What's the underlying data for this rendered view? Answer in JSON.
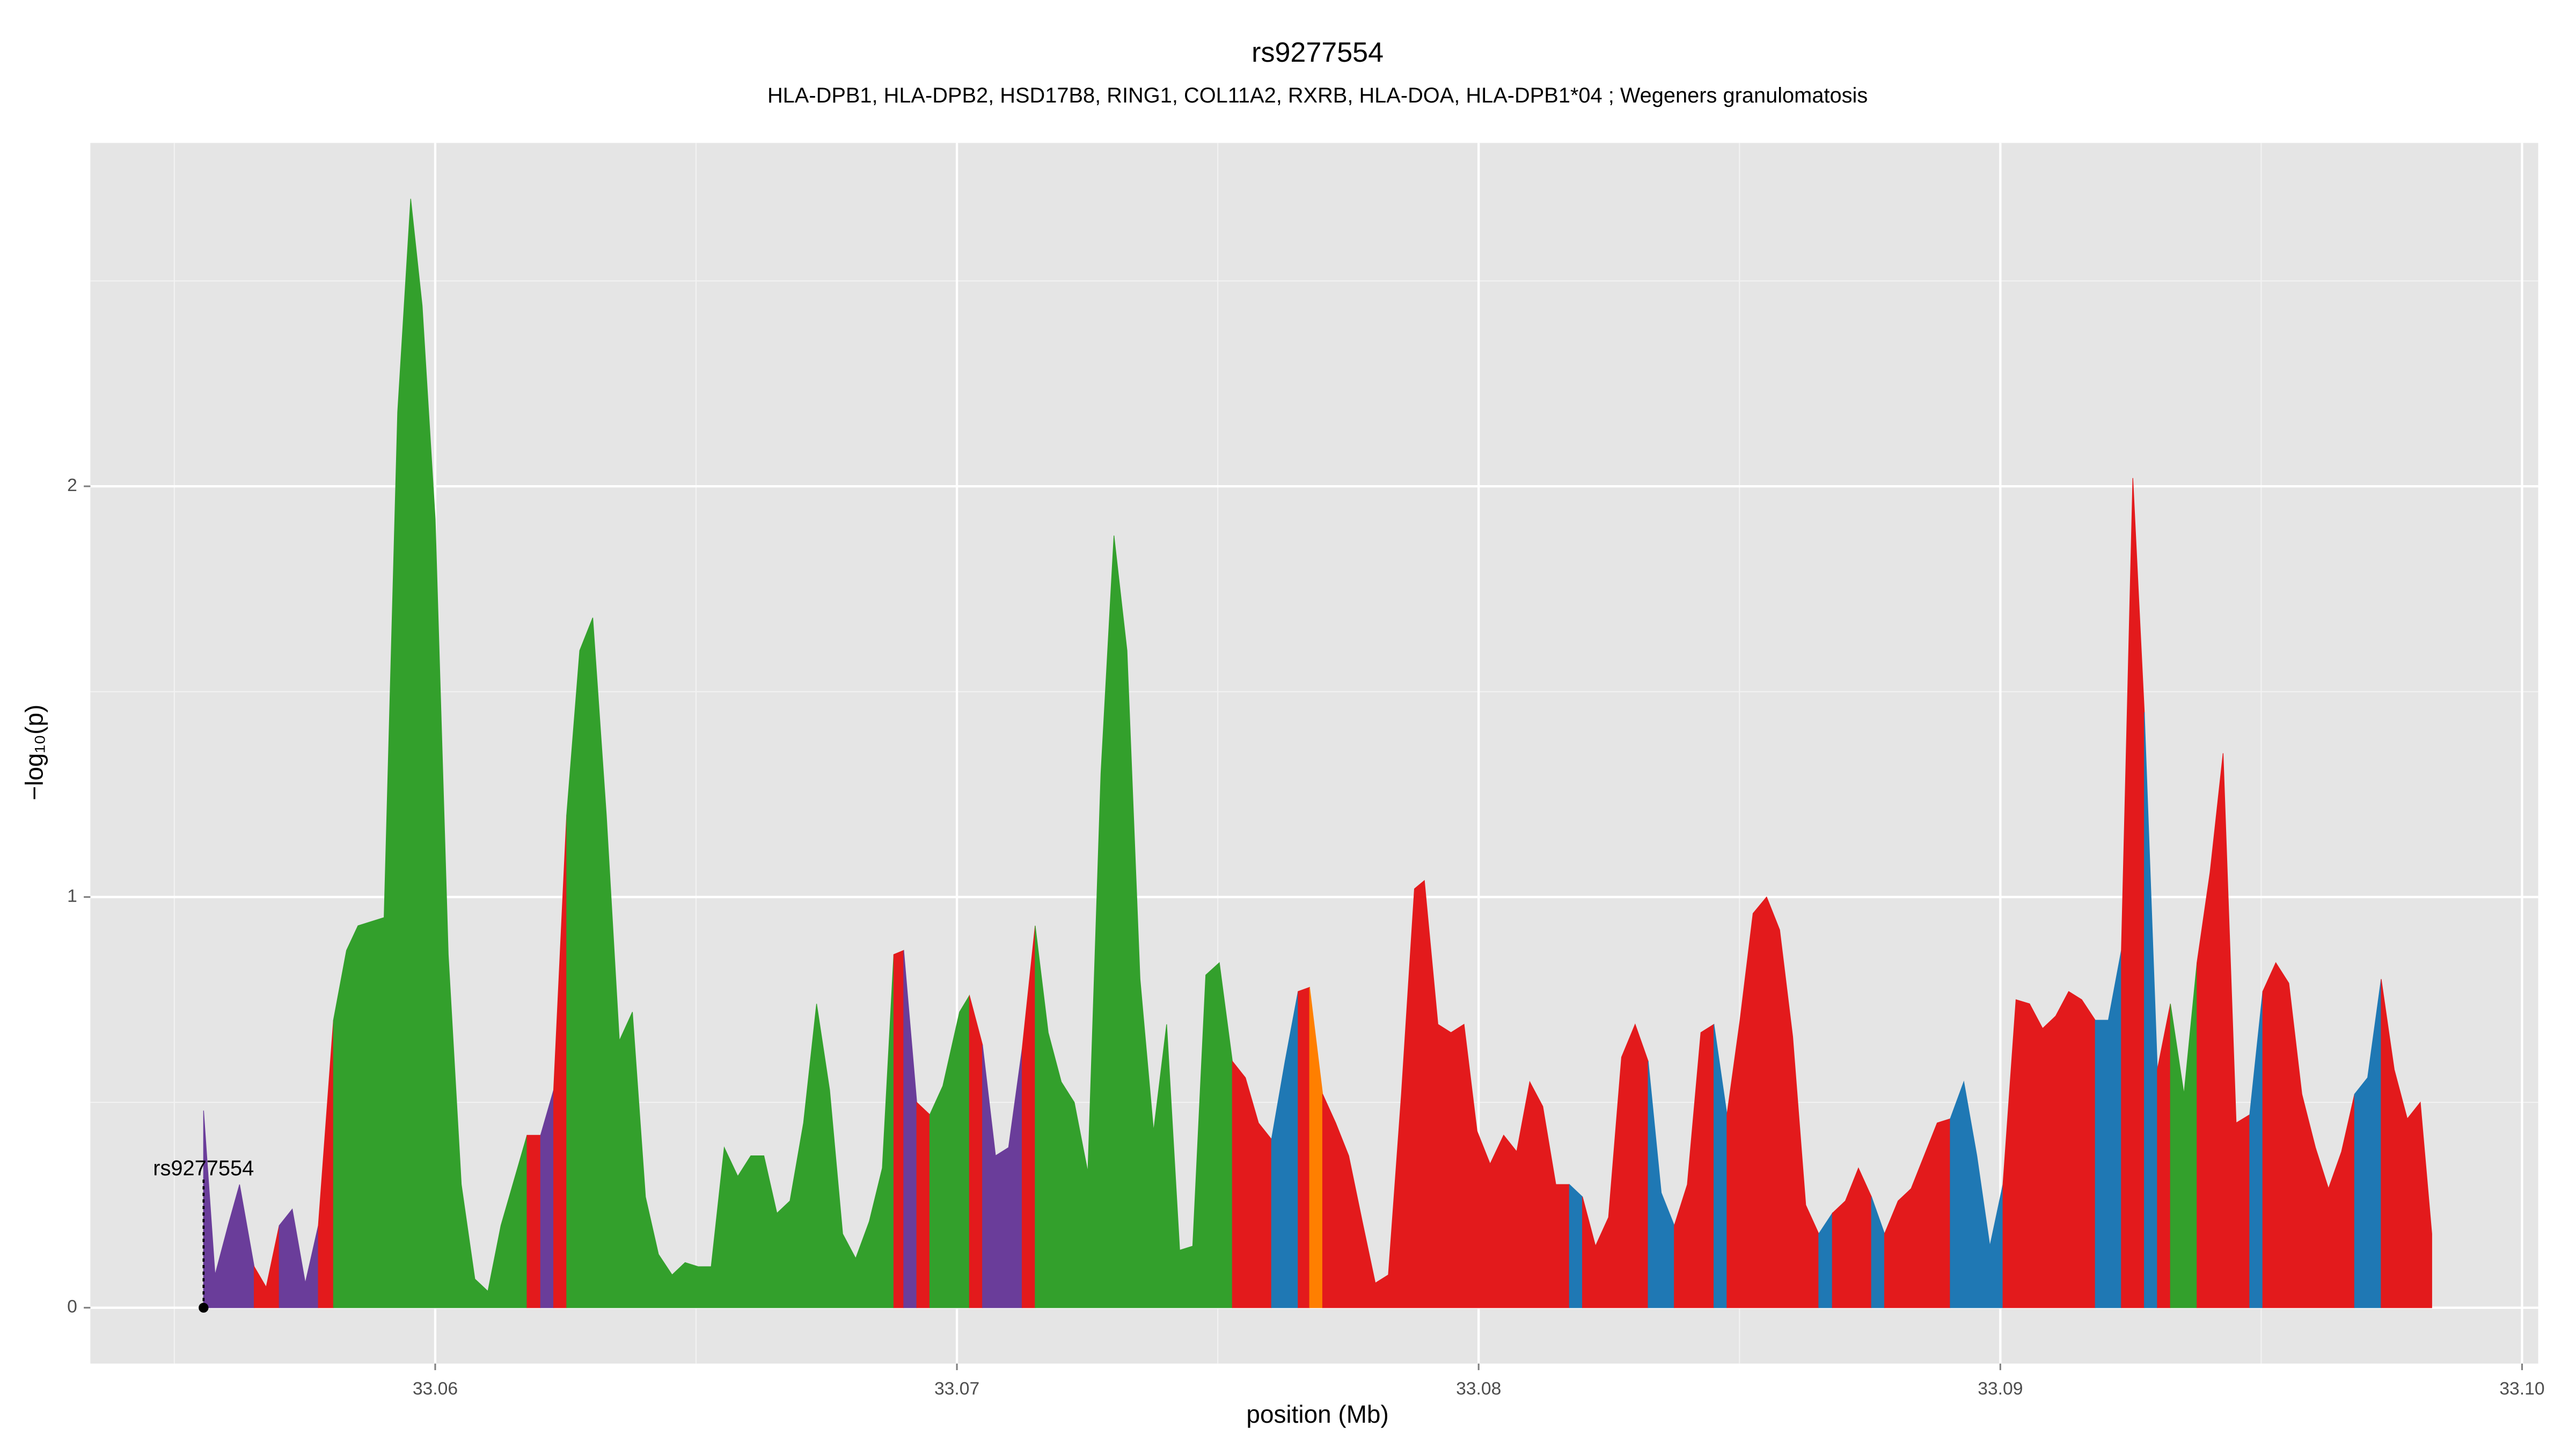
{
  "chart_data": {
    "type": "area",
    "title": "rs9277554",
    "subtitle": "HLA-DPB1, HLA-DPB2, HSD17B8, RING1, COL11A2, RXRB, HLA-DOA, HLA-DPB1*04 ; Wegeners granulomatosis",
    "x_label": "position (Mb)",
    "y_label": "−log₁₀(p)",
    "xlim": [
      33.05339,
      33.10031
    ],
    "ylim": [
      -0.136,
      2.836
    ],
    "xticks": [
      33.06,
      33.07,
      33.08,
      33.09,
      {
        "value": 33.1,
        "label": "33.10"
      }
    ],
    "yticks": [
      0,
      1,
      2
    ],
    "grid": true,
    "annotations": [
      {
        "label": "rs9277554",
        "x": 33.05556,
        "y": 0
      }
    ],
    "segments": [
      {
        "color": "#6a3d9a",
        "x": [
          33.05556,
          33.05578,
          33.05603,
          33.05625,
          33.05653
        ],
        "values": [
          0.48,
          0.08,
          0.2,
          0.3,
          0.1
        ]
      },
      {
        "color": "#e31a1c",
        "x": [
          33.05653,
          33.05676,
          33.05701
        ],
        "values": [
          0.1,
          0.05,
          0.2
        ]
      },
      {
        "color": "#6a3d9a",
        "x": [
          33.05701,
          33.05726,
          33.05751,
          33.05776
        ],
        "values": [
          0.2,
          0.24,
          0.06,
          0.2
        ]
      },
      {
        "color": "#e31a1c",
        "x": [
          33.05776,
          33.05805
        ],
        "values": [
          0.2,
          0.7
        ]
      },
      {
        "color": "#33a02c",
        "x": [
          33.05805,
          33.0583,
          33.05852,
          33.05877,
          33.05902,
          33.05928,
          33.05953,
          33.05975,
          33.06,
          33.06025,
          33.0605,
          33.06076,
          33.06101,
          33.06126,
          33.06151,
          33.06176
        ],
        "values": [
          0.7,
          0.87,
          0.93,
          0.94,
          0.95,
          2.18,
          2.7,
          2.44,
          1.92,
          0.86,
          0.3,
          0.07,
          0.04,
          0.2,
          0.31,
          0.42
        ]
      },
      {
        "color": "#e31a1c",
        "x": [
          33.06176,
          33.06202
        ],
        "values": [
          0.42,
          0.42
        ]
      },
      {
        "color": "#6a3d9a",
        "x": [
          33.06202,
          33.06227
        ],
        "values": [
          0.42,
          0.53
        ]
      },
      {
        "color": "#e31a1c",
        "x": [
          33.06227,
          33.06252
        ],
        "values": [
          0.53,
          1.2
        ]
      },
      {
        "color": "#33a02c",
        "x": [
          33.06252,
          33.06277,
          33.06302,
          33.06328,
          33.06353,
          33.06378,
          33.06403,
          33.06428,
          33.06454,
          33.06479,
          33.06504,
          33.06529,
          33.06554,
          33.0658,
          33.06605,
          33.0663,
          33.06655,
          33.0668,
          33.06706,
          33.06731,
          33.06756,
          33.06781,
          33.06806,
          33.06832,
          33.06857,
          33.06879
        ],
        "values": [
          1.2,
          1.6,
          1.68,
          1.2,
          0.65,
          0.72,
          0.27,
          0.13,
          0.08,
          0.11,
          0.1,
          0.1,
          0.39,
          0.32,
          0.37,
          0.37,
          0.23,
          0.26,
          0.45,
          0.74,
          0.53,
          0.18,
          0.12,
          0.21,
          0.34,
          0.86
        ]
      },
      {
        "color": "#e31a1c",
        "x": [
          33.06879,
          33.06898
        ],
        "values": [
          0.86,
          0.87
        ]
      },
      {
        "color": "#6a3d9a",
        "x": [
          33.06898,
          33.06923
        ],
        "values": [
          0.87,
          0.5
        ]
      },
      {
        "color": "#e31a1c",
        "x": [
          33.06923,
          33.06948
        ],
        "values": [
          0.5,
          0.47
        ]
      },
      {
        "color": "#33a02c",
        "x": [
          33.06948,
          33.06973,
          33.07005,
          33.07024
        ],
        "values": [
          0.47,
          0.54,
          0.72,
          0.76
        ]
      },
      {
        "color": "#e31a1c",
        "x": [
          33.07024,
          33.07049
        ],
        "values": [
          0.76,
          0.64
        ]
      },
      {
        "color": "#6a3d9a",
        "x": [
          33.07049,
          33.07074,
          33.07099,
          33.07125
        ],
        "values": [
          0.64,
          0.37,
          0.39,
          0.63
        ]
      },
      {
        "color": "#e31a1c",
        "x": [
          33.07125,
          33.0715
        ],
        "values": [
          0.63,
          0.93
        ]
      },
      {
        "color": "#33a02c",
        "x": [
          33.0715,
          33.07175,
          33.072,
          33.07225,
          33.07251,
          33.07276,
          33.07301,
          33.07326,
          33.07351,
          33.07377,
          33.07402,
          33.07427,
          33.07452,
          33.07477,
          33.07503,
          33.07528
        ],
        "values": [
          0.93,
          0.67,
          0.55,
          0.5,
          0.33,
          1.3,
          1.88,
          1.6,
          0.8,
          0.43,
          0.69,
          0.14,
          0.15,
          0.81,
          0.84,
          0.6
        ]
      },
      {
        "color": "#e31a1c",
        "x": [
          33.07528,
          33.07553,
          33.07578,
          33.07603
        ],
        "values": [
          0.6,
          0.56,
          0.45,
          0.41
        ]
      },
      {
        "color": "#1f78b4",
        "x": [
          33.07603,
          33.07629,
          33.07654
        ],
        "values": [
          0.41,
          0.6,
          0.77
        ]
      },
      {
        "color": "#e31a1c",
        "x": [
          33.07654,
          33.07676
        ],
        "values": [
          0.77,
          0.78
        ]
      },
      {
        "color": "#ff7f00",
        "x": [
          33.07676,
          33.07701
        ],
        "values": [
          0.78,
          0.52
        ]
      },
      {
        "color": "#e31a1c",
        "x": [
          33.07701,
          33.07726,
          33.07751,
          33.07777,
          33.07802,
          33.07827,
          33.07852,
          33.07877,
          33.07896,
          33.07922,
          33.07947,
          33.07972,
          33.07997,
          33.08022,
          33.08048,
          33.08073,
          33.08098,
          33.08123,
          33.08148,
          33.08174
        ],
        "values": [
          0.52,
          0.45,
          0.37,
          0.21,
          0.06,
          0.08,
          0.52,
          1.02,
          1.04,
          0.69,
          0.67,
          0.69,
          0.43,
          0.35,
          0.42,
          0.38,
          0.55,
          0.49,
          0.3,
          0.3
        ]
      },
      {
        "color": "#1f78b4",
        "x": [
          33.08174,
          33.08199
        ],
        "values": [
          0.3,
          0.27
        ]
      },
      {
        "color": "#e31a1c",
        "x": [
          33.08199,
          33.08224,
          33.08249,
          33.08274,
          33.083,
          33.08325
        ],
        "values": [
          0.27,
          0.15,
          0.22,
          0.61,
          0.69,
          0.6
        ]
      },
      {
        "color": "#1f78b4",
        "x": [
          33.08325,
          33.0835,
          33.08375
        ],
        "values": [
          0.6,
          0.28,
          0.2
        ]
      },
      {
        "color": "#e31a1c",
        "x": [
          33.08375,
          33.084,
          33.08426,
          33.08451
        ],
        "values": [
          0.2,
          0.3,
          0.67,
          0.69
        ]
      },
      {
        "color": "#1f78b4",
        "x": [
          33.08451,
          33.08476
        ],
        "values": [
          0.69,
          0.47
        ]
      },
      {
        "color": "#e31a1c",
        "x": [
          33.08476,
          33.08501,
          33.08526,
          33.08552,
          33.08577,
          33.08602,
          33.08627,
          33.08652
        ],
        "values": [
          0.47,
          0.7,
          0.96,
          1.0,
          0.92,
          0.66,
          0.25,
          0.18
        ]
      },
      {
        "color": "#1f78b4",
        "x": [
          33.08652,
          33.08678
        ],
        "values": [
          0.18,
          0.23
        ]
      },
      {
        "color": "#e31a1c",
        "x": [
          33.08678,
          33.08703,
          33.08728,
          33.08753
        ],
        "values": [
          0.23,
          0.26,
          0.34,
          0.27
        ]
      },
      {
        "color": "#1f78b4",
        "x": [
          33.08753,
          33.08778
        ],
        "values": [
          0.27,
          0.18
        ]
      },
      {
        "color": "#e31a1c",
        "x": [
          33.08778,
          33.08804,
          33.08829,
          33.08854,
          33.08879,
          33.08904
        ],
        "values": [
          0.18,
          0.26,
          0.29,
          0.37,
          0.45,
          0.46
        ]
      },
      {
        "color": "#1f78b4",
        "x": [
          33.08904,
          33.0893,
          33.08955,
          33.0898,
          33.09005
        ],
        "values": [
          0.46,
          0.55,
          0.37,
          0.15,
          0.3
        ]
      },
      {
        "color": "#e31a1c",
        "x": [
          33.09005,
          33.0903,
          33.09056,
          33.09081,
          33.09106,
          33.09131,
          33.09156,
          33.09182
        ],
        "values": [
          0.3,
          0.75,
          0.74,
          0.68,
          0.71,
          0.77,
          0.75,
          0.7
        ]
      },
      {
        "color": "#1f78b4",
        "x": [
          33.09182,
          33.09207,
          33.09232
        ],
        "values": [
          0.7,
          0.7,
          0.87
        ]
      },
      {
        "color": "#e31a1c",
        "x": [
          33.09232,
          33.09254,
          33.09276
        ],
        "values": [
          0.87,
          2.02,
          1.45
        ]
      },
      {
        "color": "#1f78b4",
        "x": [
          33.09276,
          33.09301
        ],
        "values": [
          1.45,
          0.58
        ]
      },
      {
        "color": "#e31a1c",
        "x": [
          33.09301,
          33.09326
        ],
        "values": [
          0.58,
          0.74
        ]
      },
      {
        "color": "#33a02c",
        "x": [
          33.09326,
          33.09352,
          33.09377
        ],
        "values": [
          0.74,
          0.52,
          0.84
        ]
      },
      {
        "color": "#e31a1c",
        "x": [
          33.09377,
          33.09402,
          33.09427,
          33.09452,
          33.09478
        ],
        "values": [
          0.84,
          1.06,
          1.35,
          0.45,
          0.47
        ]
      },
      {
        "color": "#1f78b4",
        "x": [
          33.09478,
          33.09503
        ],
        "values": [
          0.47,
          0.77
        ]
      },
      {
        "color": "#e31a1c",
        "x": [
          33.09503,
          33.09528,
          33.09553,
          33.09578,
          33.09604,
          33.09629,
          33.09654,
          33.09679
        ],
        "values": [
          0.77,
          0.84,
          0.79,
          0.52,
          0.39,
          0.29,
          0.38,
          0.52
        ]
      },
      {
        "color": "#1f78b4",
        "x": [
          33.09679,
          33.09704,
          33.0973
        ],
        "values": [
          0.52,
          0.56,
          0.8
        ]
      },
      {
        "color": "#e31a1c",
        "x": [
          33.0973,
          33.09755,
          33.0978,
          33.09805,
          33.09827
        ],
        "values": [
          0.8,
          0.58,
          0.46,
          0.5,
          0.18
        ]
      }
    ]
  }
}
